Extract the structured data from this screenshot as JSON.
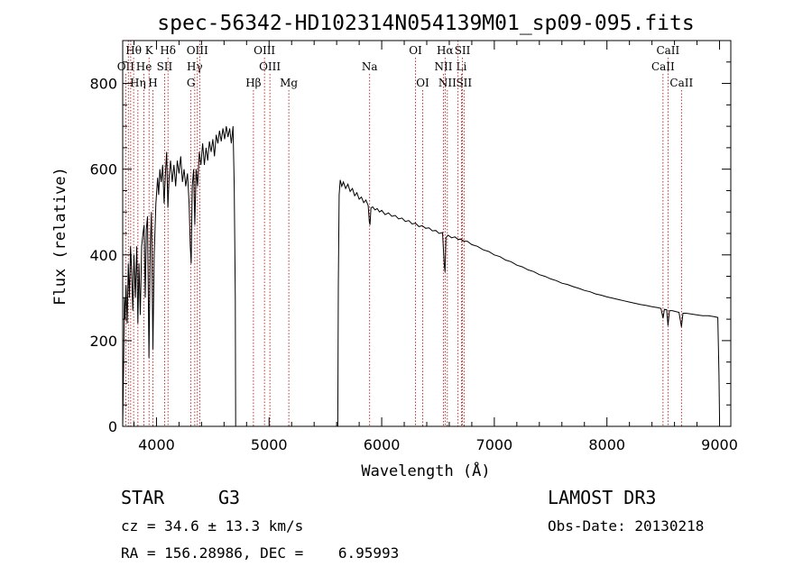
{
  "chart_data": {
    "type": "line",
    "title": "spec-56342-HD102314N054139M01_sp09-095.fits",
    "xlabel": "Wavelength (Å)",
    "ylabel": "Flux (relative)",
    "xlim": [
      3700,
      9100
    ],
    "ylim": [
      0,
      900
    ],
    "xticks": [
      4000,
      5000,
      6000,
      7000,
      8000,
      9000
    ],
    "yticks": [
      0,
      200,
      400,
      600,
      800
    ],
    "spectrum": {
      "segments": [
        [
          [
            3700,
            0
          ],
          [
            3708,
            140
          ],
          [
            3715,
            300
          ],
          [
            3722,
            250
          ],
          [
            3730,
            330
          ],
          [
            3740,
            240
          ],
          [
            3750,
            380
          ],
          [
            3760,
            300
          ],
          [
            3770,
            420
          ],
          [
            3780,
            360
          ],
          [
            3790,
            270
          ],
          [
            3800,
            400
          ],
          [
            3812,
            300
          ],
          [
            3825,
            420
          ],
          [
            3835,
            240
          ],
          [
            3845,
            380
          ],
          [
            3856,
            260
          ],
          [
            3868,
            420
          ],
          [
            3880,
            450
          ],
          [
            3890,
            470
          ],
          [
            3900,
            300
          ],
          [
            3910,
            460
          ],
          [
            3920,
            490
          ],
          [
            3933,
            160
          ],
          [
            3945,
            420
          ],
          [
            3955,
            500
          ],
          [
            3968,
            180
          ],
          [
            3980,
            400
          ],
          [
            3995,
            520
          ],
          [
            4010,
            580
          ],
          [
            4020,
            540
          ],
          [
            4030,
            600
          ],
          [
            4042,
            570
          ],
          [
            4055,
            610
          ],
          [
            4068,
            520
          ],
          [
            4080,
            590
          ],
          [
            4090,
            640
          ],
          [
            4101,
            510
          ],
          [
            4112,
            580
          ],
          [
            4125,
            620
          ],
          [
            4140,
            570
          ],
          [
            4155,
            610
          ],
          [
            4170,
            560
          ],
          [
            4185,
            620
          ],
          [
            4200,
            590
          ],
          [
            4215,
            630
          ],
          [
            4230,
            570
          ],
          [
            4245,
            600
          ],
          [
            4260,
            560
          ],
          [
            4275,
            590
          ],
          [
            4290,
            520
          ],
          [
            4300,
            420
          ],
          [
            4308,
            380
          ],
          [
            4318,
            560
          ],
          [
            4330,
            600
          ],
          [
            4340,
            470
          ],
          [
            4352,
            600
          ],
          [
            4365,
            560
          ],
          [
            4380,
            640
          ],
          [
            4395,
            610
          ],
          [
            4410,
            660
          ],
          [
            4425,
            610
          ],
          [
            4440,
            650
          ],
          [
            4455,
            620
          ],
          [
            4470,
            665
          ],
          [
            4485,
            640
          ],
          [
            4500,
            670
          ],
          [
            4515,
            630
          ],
          [
            4530,
            680
          ],
          [
            4545,
            660
          ],
          [
            4560,
            690
          ],
          [
            4575,
            665
          ],
          [
            4590,
            695
          ],
          [
            4605,
            670
          ],
          [
            4620,
            700
          ],
          [
            4635,
            675
          ],
          [
            4650,
            695
          ],
          [
            4665,
            660
          ],
          [
            4680,
            700
          ],
          [
            4690,
            560
          ],
          [
            4700,
            300
          ],
          [
            4703,
            0
          ]
        ],
        [
          [
            5610,
            0
          ],
          [
            5615,
            330
          ],
          [
            5622,
            540
          ],
          [
            5632,
            575
          ],
          [
            5645,
            560
          ],
          [
            5660,
            570
          ],
          [
            5680,
            555
          ],
          [
            5700,
            565
          ],
          [
            5720,
            548
          ],
          [
            5740,
            555
          ],
          [
            5760,
            538
          ],
          [
            5780,
            545
          ],
          [
            5800,
            530
          ],
          [
            5820,
            535
          ],
          [
            5840,
            522
          ],
          [
            5860,
            528
          ],
          [
            5880,
            515
          ],
          [
            5890,
            478
          ],
          [
            5896,
            470
          ],
          [
            5905,
            510
          ],
          [
            5920,
            512
          ],
          [
            5940,
            505
          ],
          [
            5960,
            508
          ],
          [
            5980,
            500
          ],
          [
            6000,
            504
          ],
          [
            6030,
            494
          ],
          [
            6060,
            498
          ],
          [
            6090,
            490
          ],
          [
            6120,
            492
          ],
          [
            6150,
            484
          ],
          [
            6180,
            486
          ],
          [
            6210,
            478
          ],
          [
            6240,
            480
          ],
          [
            6270,
            472
          ],
          [
            6300,
            474
          ],
          [
            6330,
            466
          ],
          [
            6360,
            468
          ],
          [
            6390,
            462
          ],
          [
            6420,
            463
          ],
          [
            6450,
            456
          ],
          [
            6480,
            457
          ],
          [
            6510,
            450
          ],
          [
            6540,
            452
          ],
          [
            6555,
            380
          ],
          [
            6563,
            360
          ],
          [
            6570,
            440
          ],
          [
            6590,
            446
          ],
          [
            6620,
            440
          ],
          [
            6650,
            442
          ],
          [
            6680,
            436
          ],
          [
            6700,
            437
          ],
          [
            6730,
            432
          ],
          [
            6760,
            432
          ],
          [
            6800,
            424
          ],
          [
            6850,
            420
          ],
          [
            6900,
            412
          ],
          [
            6950,
            408
          ],
          [
            7000,
            400
          ],
          [
            7050,
            396
          ],
          [
            7100,
            388
          ],
          [
            7150,
            384
          ],
          [
            7200,
            376
          ],
          [
            7250,
            372
          ],
          [
            7300,
            365
          ],
          [
            7350,
            361
          ],
          [
            7400,
            354
          ],
          [
            7450,
            350
          ],
          [
            7500,
            344
          ],
          [
            7550,
            340
          ],
          [
            7600,
            334
          ],
          [
            7650,
            331
          ],
          [
            7700,
            326
          ],
          [
            7750,
            322
          ],
          [
            7800,
            317
          ],
          [
            7850,
            314
          ],
          [
            7900,
            309
          ],
          [
            7950,
            306
          ],
          [
            8000,
            302
          ],
          [
            8050,
            299
          ],
          [
            8100,
            296
          ],
          [
            8150,
            293
          ],
          [
            8200,
            290
          ],
          [
            8250,
            287
          ],
          [
            8300,
            284
          ],
          [
            8350,
            282
          ],
          [
            8400,
            279
          ],
          [
            8450,
            277
          ],
          [
            8480,
            275
          ],
          [
            8498,
            252
          ],
          [
            8510,
            273
          ],
          [
            8530,
            272
          ],
          [
            8542,
            235
          ],
          [
            8555,
            270
          ],
          [
            8580,
            270
          ],
          [
            8610,
            268
          ],
          [
            8640,
            266
          ],
          [
            8662,
            232
          ],
          [
            8675,
            264
          ],
          [
            8700,
            264
          ],
          [
            8750,
            262
          ],
          [
            8800,
            260
          ],
          [
            8850,
            258
          ],
          [
            8900,
            258
          ],
          [
            8950,
            256
          ],
          [
            8985,
            254
          ],
          [
            8995,
            120
          ],
          [
            9000,
            20
          ]
        ]
      ]
    },
    "spectral_lines": [
      {
        "label": "Hθ",
        "wavelength": 3797,
        "row": 0
      },
      {
        "label": "K",
        "wavelength": 3934,
        "row": 0
      },
      {
        "label": "Hδ",
        "wavelength": 4102,
        "row": 0
      },
      {
        "label": "OIII",
        "wavelength": 4363,
        "row": 0
      },
      {
        "label": "OIII",
        "wavelength": 4959,
        "row": 0
      },
      {
        "label": "OI",
        "wavelength": 6300,
        "row": 0
      },
      {
        "label": "Hα",
        "wavelength": 6563,
        "row": 0
      },
      {
        "label": "SII",
        "wavelength": 6717,
        "row": 0
      },
      {
        "label": "CaII",
        "wavelength": 8542,
        "row": 0
      },
      {
        "label": "OII",
        "wavelength": 3727,
        "row": 1
      },
      {
        "label": "He",
        "wavelength": 3889,
        "row": 1
      },
      {
        "label": "SII",
        "wavelength": 4072,
        "row": 1
      },
      {
        "label": "Hγ",
        "wavelength": 4340,
        "row": 1
      },
      {
        "label": "OIII",
        "wavelength": 5007,
        "row": 1
      },
      {
        "label": "Na",
        "wavelength": 5893,
        "row": 1
      },
      {
        "label": "NII",
        "wavelength": 6548,
        "row": 1
      },
      {
        "label": "Li",
        "wavelength": 6708,
        "row": 1
      },
      {
        "label": "CaII",
        "wavelength": 8498,
        "row": 1
      },
      {
        "label": "Hη",
        "wavelength": 3835,
        "row": 2
      },
      {
        "label": "H",
        "wavelength": 3968,
        "row": 2
      },
      {
        "label": "G",
        "wavelength": 4306,
        "row": 2
      },
      {
        "label": "Hβ",
        "wavelength": 4861,
        "row": 2
      },
      {
        "label": "Mg",
        "wavelength": 5175,
        "row": 2
      },
      {
        "label": "OI",
        "wavelength": 6364,
        "row": 2
      },
      {
        "label": "NII",
        "wavelength": 6583,
        "row": 2
      },
      {
        "label": "SII",
        "wavelength": 6731,
        "row": 2
      },
      {
        "label": "CaII",
        "wavelength": 8662,
        "row": 2
      }
    ],
    "extra_lines": [
      3750,
      3771,
      4384,
      6678
    ]
  },
  "info": {
    "object_type": "STAR",
    "subclass": "G3",
    "survey": "LAMOST DR3",
    "cz": "cz = 34.6 ± 13.3 km/s",
    "obs_date": "Obs-Date: 20130218",
    "coords": "RA = 156.28986, DEC =    6.95993"
  }
}
